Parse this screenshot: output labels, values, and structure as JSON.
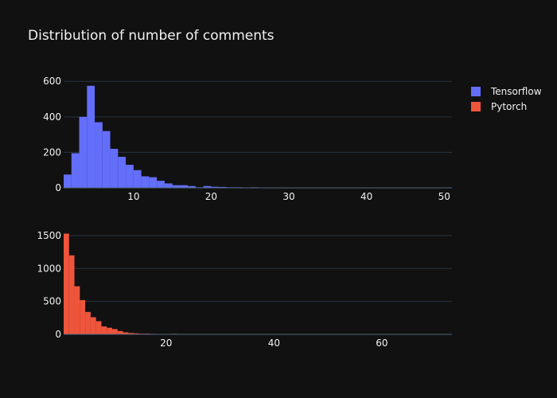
{
  "chart_data": {
    "type": "bar",
    "title": "Distribution of number of comments",
    "legend": {
      "position": "top-right",
      "entries": [
        "Tensorflow",
        "Pytorch"
      ]
    },
    "grid": true,
    "subplots": [
      {
        "name": "Tensorflow",
        "color": "#636efa",
        "xlim": [
          1,
          51
        ],
        "ylim": [
          0,
          610
        ],
        "xticks": [
          10,
          20,
          30,
          40,
          50
        ],
        "yticks": [
          0,
          200,
          400,
          600
        ],
        "bin_start": 1,
        "bin_width": 1,
        "values": [
          75,
          195,
          400,
          575,
          370,
          320,
          220,
          175,
          130,
          100,
          65,
          60,
          40,
          25,
          15,
          15,
          10,
          3,
          10,
          6,
          5,
          3,
          3,
          0,
          3,
          2,
          2,
          0,
          0,
          0,
          0,
          0,
          0,
          0,
          0,
          0,
          0,
          0,
          0,
          0,
          0,
          0,
          0,
          0,
          0,
          0,
          0,
          0,
          0,
          1
        ]
      },
      {
        "name": "Pytorch",
        "color": "#ef553b",
        "xlim": [
          1,
          73
        ],
        "ylim": [
          0,
          1560
        ],
        "xticks": [
          20,
          40,
          60
        ],
        "yticks": [
          0,
          500,
          1000,
          1500
        ],
        "bin_start": 1,
        "bin_width": 1,
        "values": [
          1530,
          1200,
          730,
          520,
          340,
          260,
          200,
          120,
          100,
          80,
          50,
          30,
          20,
          15,
          10,
          10,
          7,
          5,
          5,
          3,
          8,
          3,
          5,
          2,
          2,
          1,
          1,
          1,
          1,
          1,
          1,
          0,
          0,
          0,
          0,
          0,
          0,
          0,
          0,
          0,
          0,
          0,
          0,
          0,
          0,
          0,
          0,
          0,
          0,
          0,
          0,
          0,
          0,
          0,
          0,
          0,
          0,
          0,
          0,
          0,
          0,
          0,
          0,
          0,
          0,
          0,
          0,
          0,
          0,
          0,
          0,
          1
        ]
      }
    ]
  }
}
